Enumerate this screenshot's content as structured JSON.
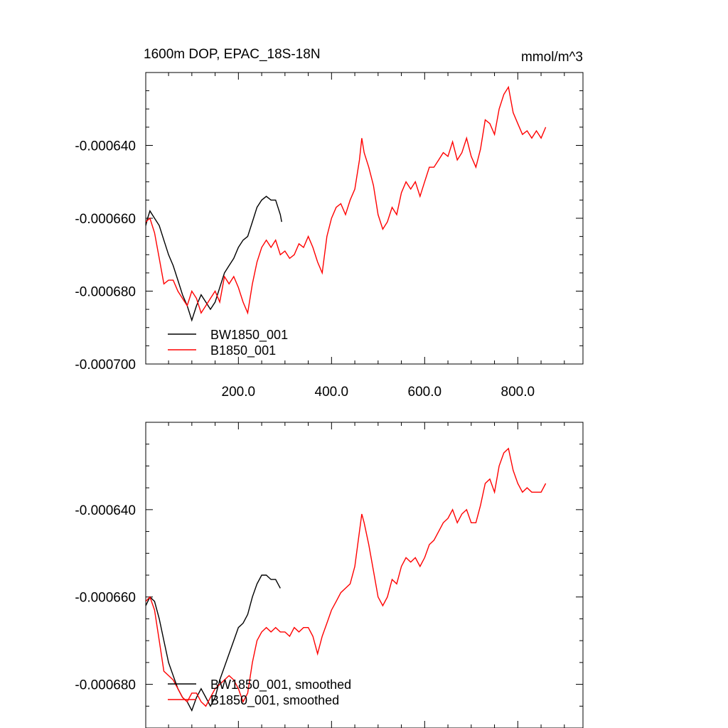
{
  "colors": {
    "series_black": "#000000",
    "series_red": "#ff0000",
    "axis": "#000000"
  },
  "chart_data": [
    {
      "type": "line",
      "title_left": "1600m DOP, EPAC_18S-18N",
      "title_right": "mmol/m^3",
      "xlim": [
        1,
        940
      ],
      "ylim": [
        -0.0007,
        -0.00062
      ],
      "xticks": [
        200,
        400,
        600,
        800
      ],
      "xtick_labels": [
        "200.0",
        "400.0",
        "600.0",
        "800.0"
      ],
      "yticks": [
        -0.00064,
        -0.00066,
        -0.00068,
        -0.0007
      ],
      "ytick_labels": [
        "-0.000640",
        "-0.000660",
        "-0.000680",
        "-0.000700"
      ],
      "legend_position": "bottom-left",
      "series": [
        {
          "name": "BW1850_001",
          "color": "#000000",
          "points": [
            [
              1,
              -0.000662
            ],
            [
              5,
              -0.00066
            ],
            [
              10,
              -0.000658
            ],
            [
              20,
              -0.00066
            ],
            [
              30,
              -0.000662
            ],
            [
              40,
              -0.000666
            ],
            [
              50,
              -0.00067
            ],
            [
              60,
              -0.000673
            ],
            [
              70,
              -0.000677
            ],
            [
              80,
              -0.000681
            ],
            [
              90,
              -0.000684
            ],
            [
              100,
              -0.000688
            ],
            [
              110,
              -0.000684
            ],
            [
              120,
              -0.000681
            ],
            [
              130,
              -0.000683
            ],
            [
              140,
              -0.000685
            ],
            [
              150,
              -0.000683
            ],
            [
              160,
              -0.000679
            ],
            [
              170,
              -0.000675
            ],
            [
              180,
              -0.000673
            ],
            [
              190,
              -0.000671
            ],
            [
              200,
              -0.000668
            ],
            [
              210,
              -0.000666
            ],
            [
              220,
              -0.000665
            ],
            [
              230,
              -0.000661
            ],
            [
              240,
              -0.000657
            ],
            [
              250,
              -0.000655
            ],
            [
              260,
              -0.000654
            ],
            [
              270,
              -0.000655
            ],
            [
              280,
              -0.000655
            ],
            [
              290,
              -0.000659
            ],
            [
              293,
              -0.000661
            ]
          ]
        },
        {
          "name": "B1850_001",
          "color": "#ff0000",
          "points": [
            [
              1,
              -0.000661
            ],
            [
              10,
              -0.00066
            ],
            [
              20,
              -0.000664
            ],
            [
              30,
              -0.000671
            ],
            [
              40,
              -0.000678
            ],
            [
              50,
              -0.000677
            ],
            [
              60,
              -0.000677
            ],
            [
              70,
              -0.00068
            ],
            [
              80,
              -0.000682
            ],
            [
              90,
              -0.000684
            ],
            [
              100,
              -0.00068
            ],
            [
              110,
              -0.000682
            ],
            [
              120,
              -0.000686
            ],
            [
              130,
              -0.000684
            ],
            [
              140,
              -0.000682
            ],
            [
              150,
              -0.00068
            ],
            [
              160,
              -0.000683
            ],
            [
              170,
              -0.000676
            ],
            [
              180,
              -0.000678
            ],
            [
              190,
              -0.000676
            ],
            [
              200,
              -0.000679
            ],
            [
              210,
              -0.000683
            ],
            [
              220,
              -0.000686
            ],
            [
              230,
              -0.000678
            ],
            [
              240,
              -0.000672
            ],
            [
              250,
              -0.000668
            ],
            [
              260,
              -0.000666
            ],
            [
              270,
              -0.000668
            ],
            [
              280,
              -0.000666
            ],
            [
              290,
              -0.00067
            ],
            [
              300,
              -0.000669
            ],
            [
              310,
              -0.000671
            ],
            [
              320,
              -0.00067
            ],
            [
              330,
              -0.000667
            ],
            [
              340,
              -0.000668
            ],
            [
              350,
              -0.000665
            ],
            [
              360,
              -0.000668
            ],
            [
              370,
              -0.000672
            ],
            [
              380,
              -0.000675
            ],
            [
              390,
              -0.000665
            ],
            [
              400,
              -0.00066
            ],
            [
              410,
              -0.000657
            ],
            [
              420,
              -0.000656
            ],
            [
              430,
              -0.000659
            ],
            [
              440,
              -0.000655
            ],
            [
              450,
              -0.000652
            ],
            [
              460,
              -0.000644
            ],
            [
              465,
              -0.000638
            ],
            [
              470,
              -0.000642
            ],
            [
              480,
              -0.000646
            ],
            [
              490,
              -0.000651
            ],
            [
              500,
              -0.000659
            ],
            [
              510,
              -0.000663
            ],
            [
              520,
              -0.000661
            ],
            [
              530,
              -0.000657
            ],
            [
              540,
              -0.000659
            ],
            [
              550,
              -0.000653
            ],
            [
              560,
              -0.00065
            ],
            [
              570,
              -0.000652
            ],
            [
              580,
              -0.00065
            ],
            [
              590,
              -0.000654
            ],
            [
              600,
              -0.00065
            ],
            [
              610,
              -0.000646
            ],
            [
              620,
              -0.000646
            ],
            [
              630,
              -0.000644
            ],
            [
              640,
              -0.000642
            ],
            [
              650,
              -0.000643
            ],
            [
              660,
              -0.000639
            ],
            [
              670,
              -0.000644
            ],
            [
              680,
              -0.000642
            ],
            [
              690,
              -0.000638
            ],
            [
              700,
              -0.000643
            ],
            [
              710,
              -0.000646
            ],
            [
              720,
              -0.000641
            ],
            [
              730,
              -0.000633
            ],
            [
              740,
              -0.000634
            ],
            [
              750,
              -0.000637
            ],
            [
              760,
              -0.00063
            ],
            [
              770,
              -0.000626
            ],
            [
              780,
              -0.000624
            ],
            [
              790,
              -0.000631
            ],
            [
              800,
              -0.000634
            ],
            [
              810,
              -0.000637
            ],
            [
              820,
              -0.000636
            ],
            [
              830,
              -0.000638
            ],
            [
              840,
              -0.000636
            ],
            [
              850,
              -0.000638
            ],
            [
              860,
              -0.000635
            ]
          ]
        }
      ]
    },
    {
      "type": "line",
      "xlim": [
        1,
        940
      ],
      "ylim": [
        -0.00069,
        -0.00062
      ],
      "xticks": [
        200,
        400,
        600,
        800
      ],
      "yticks": [
        -0.00064,
        -0.00066,
        -0.00068
      ],
      "ytick_labels": [
        "-0.000640",
        "-0.000660",
        "-0.000680"
      ],
      "legend_position": "bottom-left",
      "series": [
        {
          "name": "BW1850_001, smoothed",
          "color": "#000000",
          "points": [
            [
              1,
              -0.000662
            ],
            [
              10,
              -0.00066
            ],
            [
              20,
              -0.000661
            ],
            [
              30,
              -0.000665
            ],
            [
              40,
              -0.00067
            ],
            [
              50,
              -0.000675
            ],
            [
              60,
              -0.000678
            ],
            [
              70,
              -0.000681
            ],
            [
              80,
              -0.000683
            ],
            [
              90,
              -0.000684
            ],
            [
              100,
              -0.000686
            ],
            [
              110,
              -0.000683
            ],
            [
              120,
              -0.000681
            ],
            [
              130,
              -0.000683
            ],
            [
              140,
              -0.000685
            ],
            [
              150,
              -0.000683
            ],
            [
              160,
              -0.000679
            ],
            [
              170,
              -0.000676
            ],
            [
              180,
              -0.000673
            ],
            [
              190,
              -0.00067
            ],
            [
              200,
              -0.000667
            ],
            [
              210,
              -0.000666
            ],
            [
              220,
              -0.000664
            ],
            [
              230,
              -0.00066
            ],
            [
              240,
              -0.000657
            ],
            [
              250,
              -0.000655
            ],
            [
              260,
              -0.000655
            ],
            [
              270,
              -0.000656
            ],
            [
              280,
              -0.000656
            ],
            [
              290,
              -0.000658
            ]
          ]
        },
        {
          "name": "B1850_001, smoothed",
          "color": "#ff0000",
          "points": [
            [
              1,
              -0.000661
            ],
            [
              10,
              -0.00066
            ],
            [
              20,
              -0.000663
            ],
            [
              30,
              -0.00067
            ],
            [
              40,
              -0.000677
            ],
            [
              50,
              -0.000678
            ],
            [
              60,
              -0.000679
            ],
            [
              70,
              -0.000681
            ],
            [
              80,
              -0.000683
            ],
            [
              90,
              -0.000684
            ],
            [
              100,
              -0.000682
            ],
            [
              110,
              -0.000682
            ],
            [
              120,
              -0.000684
            ],
            [
              130,
              -0.000685
            ],
            [
              140,
              -0.000683
            ],
            [
              150,
              -0.000681
            ],
            [
              160,
              -0.00068
            ],
            [
              170,
              -0.000679
            ],
            [
              180,
              -0.000678
            ],
            [
              190,
              -0.000679
            ],
            [
              200,
              -0.000681
            ],
            [
              210,
              -0.000684
            ],
            [
              220,
              -0.000682
            ],
            [
              230,
              -0.000675
            ],
            [
              240,
              -0.00067
            ],
            [
              250,
              -0.000668
            ],
            [
              260,
              -0.000667
            ],
            [
              270,
              -0.000668
            ],
            [
              280,
              -0.000667
            ],
            [
              290,
              -0.000668
            ],
            [
              300,
              -0.000668
            ],
            [
              310,
              -0.000669
            ],
            [
              320,
              -0.000667
            ],
            [
              330,
              -0.000668
            ],
            [
              340,
              -0.000667
            ],
            [
              350,
              -0.000667
            ],
            [
              360,
              -0.000669
            ],
            [
              370,
              -0.000673
            ],
            [
              380,
              -0.000669
            ],
            [
              390,
              -0.000666
            ],
            [
              400,
              -0.000663
            ],
            [
              410,
              -0.000661
            ],
            [
              420,
              -0.000659
            ],
            [
              430,
              -0.000658
            ],
            [
              440,
              -0.000657
            ],
            [
              450,
              -0.000653
            ],
            [
              460,
              -0.000645
            ],
            [
              465,
              -0.000641
            ],
            [
              470,
              -0.000643
            ],
            [
              480,
              -0.000648
            ],
            [
              490,
              -0.000654
            ],
            [
              500,
              -0.00066
            ],
            [
              510,
              -0.000662
            ],
            [
              520,
              -0.00066
            ],
            [
              530,
              -0.000656
            ],
            [
              540,
              -0.000657
            ],
            [
              550,
              -0.000653
            ],
            [
              560,
              -0.000651
            ],
            [
              570,
              -0.000652
            ],
            [
              580,
              -0.000651
            ],
            [
              590,
              -0.000653
            ],
            [
              600,
              -0.000651
            ],
            [
              610,
              -0.000648
            ],
            [
              620,
              -0.000647
            ],
            [
              630,
              -0.000645
            ],
            [
              640,
              -0.000643
            ],
            [
              650,
              -0.000642
            ],
            [
              660,
              -0.00064
            ],
            [
              670,
              -0.000643
            ],
            [
              680,
              -0.000641
            ],
            [
              690,
              -0.00064
            ],
            [
              700,
              -0.000643
            ],
            [
              710,
              -0.000643
            ],
            [
              720,
              -0.000639
            ],
            [
              730,
              -0.000634
            ],
            [
              740,
              -0.000633
            ],
            [
              750,
              -0.000636
            ],
            [
              760,
              -0.00063
            ],
            [
              770,
              -0.000627
            ],
            [
              780,
              -0.000626
            ],
            [
              790,
              -0.000631
            ],
            [
              800,
              -0.000634
            ],
            [
              810,
              -0.000636
            ],
            [
              820,
              -0.000635
            ],
            [
              830,
              -0.000636
            ],
            [
              840,
              -0.000636
            ],
            [
              850,
              -0.000636
            ],
            [
              860,
              -0.000634
            ]
          ]
        }
      ]
    }
  ]
}
